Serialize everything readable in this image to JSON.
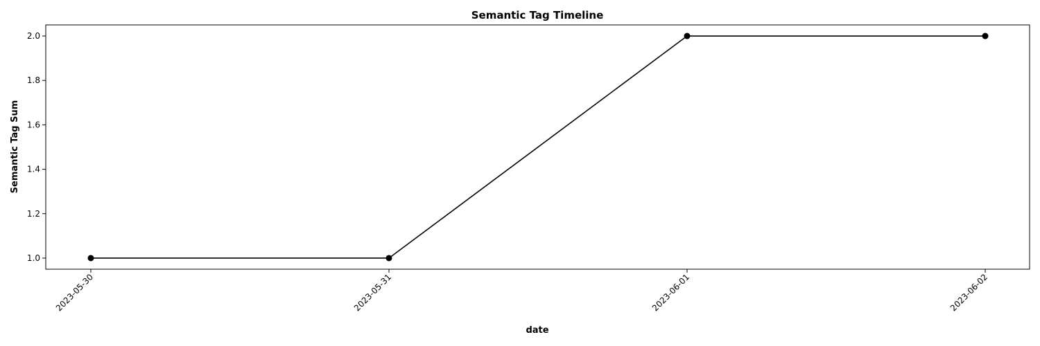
{
  "chart_data": {
    "type": "line",
    "title": "Semantic Tag Timeline",
    "xlabel": "date",
    "ylabel": "Semantic Tag Sum",
    "x": [
      "2023-05-30",
      "2023-05-31",
      "2023-06-01",
      "2023-06-02"
    ],
    "y_ticks": [
      "1.0",
      "1.2",
      "1.4",
      "1.6",
      "1.8",
      "2.0"
    ],
    "series": [
      {
        "values": [
          1,
          1,
          2,
          2
        ],
        "color": "#000000",
        "marker": "circle"
      }
    ],
    "ylim": [
      0.95,
      2.05
    ],
    "grid": false,
    "legend": "none"
  }
}
